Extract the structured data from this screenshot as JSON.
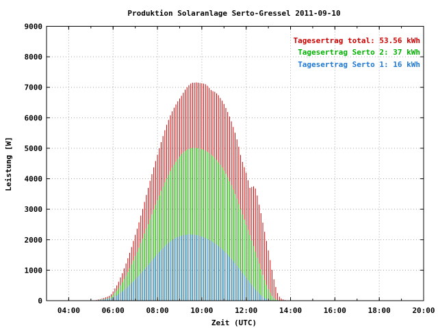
{
  "chart_data": {
    "type": "bar",
    "title": "Produktion Solaranlage Serto-Gressel 2011-09-10",
    "xlabel": "Zeit (UTC)",
    "ylabel": "Leistung [W]",
    "xlim_hours": [
      3.0,
      20.0
    ],
    "ylim": [
      0,
      9000
    ],
    "x_ticks": [
      "04:00",
      "06:00",
      "08:00",
      "10:00",
      "12:00",
      "14:00",
      "16:00",
      "18:00",
      "20:00"
    ],
    "y_ticks": [
      "0",
      "1000",
      "2000",
      "3000",
      "4000",
      "5000",
      "6000",
      "7000",
      "8000",
      "9000"
    ],
    "grid": true,
    "legend_position": "top-right",
    "legend": [
      {
        "text": "Tagesertrag total: 53.56 kWh",
        "color": "#cc0000"
      },
      {
        "text": "Tagesertrag Serto 2: 37 kWh",
        "color": "#00b000"
      },
      {
        "text": "Tagesertrag Serto 1: 16 kWh",
        "color": "#1e78d2"
      }
    ],
    "series_colors": {
      "total": "#cc0000",
      "serto2": "#00cc00",
      "serto1": "#1e78d2"
    },
    "series": [
      {
        "name": "Tagesertrag total",
        "x_start": "05:00",
        "x_step_minutes": 5,
        "values": [
          0,
          0,
          10,
          20,
          40,
          50,
          70,
          90,
          110,
          130,
          160,
          210,
          300,
          400,
          500,
          620,
          760,
          900,
          1060,
          1220,
          1390,
          1570,
          1760,
          1960,
          2160,
          2360,
          2570,
          2790,
          3010,
          3240,
          3470,
          3700,
          3930,
          4150,
          4370,
          4580,
          4790,
          5000,
          5200,
          5400,
          5590,
          5770,
          5930,
          6080,
          6210,
          6330,
          6440,
          6540,
          6630,
          6720,
          6820,
          6920,
          7000,
          7070,
          7120,
          7150,
          7150,
          7160,
          7150,
          7140,
          7130,
          7120,
          7100,
          7050,
          6980,
          6910,
          6870,
          6850,
          6800,
          6740,
          6650,
          6560,
          6450,
          6320,
          6190,
          6040,
          5880,
          5700,
          5510,
          5290,
          5050,
          4780,
          4550,
          4380,
          4200,
          3950,
          3700,
          3730,
          3750,
          3680,
          3450,
          3150,
          2870,
          2560,
          2260,
          1960,
          1650,
          1330,
          1010,
          700,
          450,
          250,
          130,
          70,
          40,
          20
        ]
      },
      {
        "name": "Tagesertrag Serto 2",
        "x_start": "05:00",
        "x_step_minutes": 5,
        "values": [
          0,
          0,
          5,
          10,
          20,
          30,
          40,
          50,
          60,
          70,
          90,
          130,
          190,
          260,
          330,
          410,
          500,
          600,
          710,
          820,
          940,
          1060,
          1190,
          1320,
          1460,
          1600,
          1740,
          1890,
          2040,
          2200,
          2360,
          2510,
          2670,
          2830,
          2990,
          3150,
          3300,
          3450,
          3600,
          3740,
          3880,
          4010,
          4130,
          4250,
          4360,
          4460,
          4560,
          4650,
          4730,
          4800,
          4860,
          4910,
          4950,
          4980,
          5000,
          5010,
          5010,
          5010,
          5000,
          4990,
          4970,
          4950,
          4920,
          4880,
          4840,
          4790,
          4740,
          4680,
          4610,
          4540,
          4460,
          4370,
          4270,
          4160,
          4050,
          3920,
          3790,
          3650,
          3500,
          3340,
          3170,
          3000,
          2830,
          2660,
          2490,
          2320,
          2150,
          1970,
          1790,
          1600,
          1410,
          1220,
          1030,
          850,
          680,
          520,
          380,
          260,
          160,
          90,
          40,
          20,
          10,
          0,
          0,
          0
        ]
      },
      {
        "name": "Tagesertrag Serto 1",
        "x_start": "05:00",
        "x_step_minutes": 5,
        "values": [
          0,
          0,
          5,
          10,
          20,
          20,
          30,
          40,
          50,
          60,
          70,
          80,
          110,
          140,
          170,
          210,
          260,
          300,
          350,
          400,
          460,
          510,
          570,
          630,
          700,
          760,
          820,
          890,
          960,
          1030,
          1100,
          1170,
          1240,
          1320,
          1390,
          1460,
          1530,
          1600,
          1660,
          1720,
          1780,
          1840,
          1890,
          1940,
          1980,
          2020,
          2060,
          2090,
          2110,
          2130,
          2150,
          2160,
          2170,
          2170,
          2170,
          2170,
          2160,
          2150,
          2140,
          2120,
          2100,
          2080,
          2050,
          2020,
          1990,
          1960,
          1920,
          1880,
          1840,
          1790,
          1740,
          1690,
          1630,
          1570,
          1510,
          1440,
          1370,
          1300,
          1230,
          1150,
          1070,
          990,
          910,
          830,
          750,
          670,
          590,
          510,
          440,
          370,
          300,
          240,
          180,
          130,
          90,
          60,
          30,
          20,
          10,
          0,
          0,
          0,
          0,
          0,
          0,
          0
        ]
      }
    ]
  }
}
